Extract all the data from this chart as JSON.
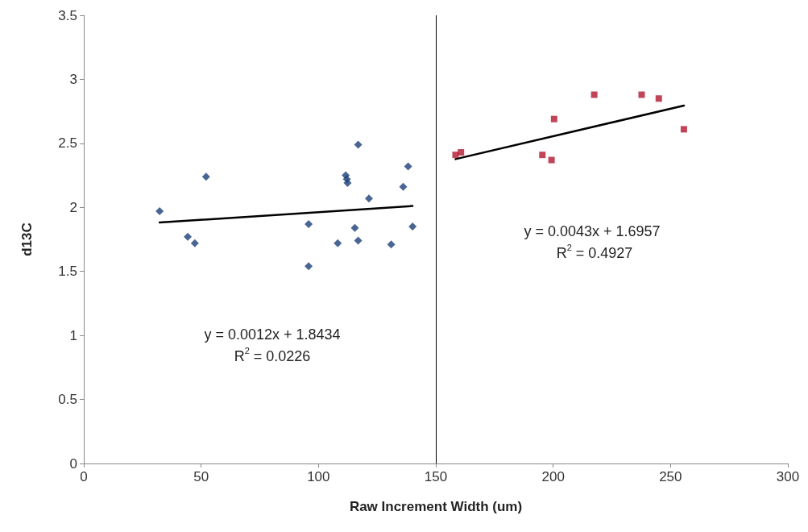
{
  "chart_data": {
    "type": "scatter",
    "xlabel": "Raw Increment Width (um)",
    "ylabel": "d13C",
    "xlim": [
      0,
      300
    ],
    "xticks": [
      0,
      50,
      100,
      150,
      200,
      250,
      300
    ],
    "ylim": [
      0,
      3.5
    ],
    "yticks": [
      0,
      0.5,
      1,
      1.5,
      2,
      2.5,
      3,
      3.5
    ],
    "grid": false,
    "series": [
      {
        "marker": "diamond",
        "color": "#1c3f78",
        "x": [
          32.3,
          44.3,
          47.3,
          52.1,
          95.8,
          95.8,
          108.2,
          111.6,
          112.1,
          112.4,
          115.5,
          116.9,
          116.9,
          121.5,
          131.0,
          136.1,
          138.2,
          140.1
        ],
        "values": [
          1.97,
          1.77,
          1.72,
          2.24,
          1.87,
          1.54,
          1.72,
          2.25,
          2.22,
          2.19,
          1.84,
          2.49,
          1.74,
          2.07,
          1.71,
          2.16,
          2.32,
          1.85
        ]
      },
      {
        "marker": "square",
        "color": "#b0172f",
        "x": [
          158.4,
          160.7,
          195.4,
          199.3,
          200.4,
          217.5,
          237.7,
          245.0,
          255.7
        ],
        "values": [
          2.41,
          2.43,
          2.41,
          2.37,
          2.69,
          2.88,
          2.88,
          2.85,
          2.61
        ]
      },
      {
        "type": "line",
        "marker": "none",
        "color": "#000000",
        "x": [
          32.3,
          140.1
        ],
        "values": [
          1.882,
          2.011
        ]
      },
      {
        "type": "line",
        "marker": "none",
        "color": "#000000",
        "x": [
          158.4,
          255.7
        ],
        "values": [
          2.377,
          2.795
        ]
      }
    ],
    "ref_lines": [
      {
        "axis": "x",
        "value": 150,
        "color": "#000000",
        "line_style": "solid"
      }
    ],
    "annotations": [
      "y = 0.0012x + 1.8434",
      "R$^{2}$ = 0.0226",
      "y = 0.0043x + 1.6957",
      "R$^{2}$ = 0.4927"
    ]
  }
}
